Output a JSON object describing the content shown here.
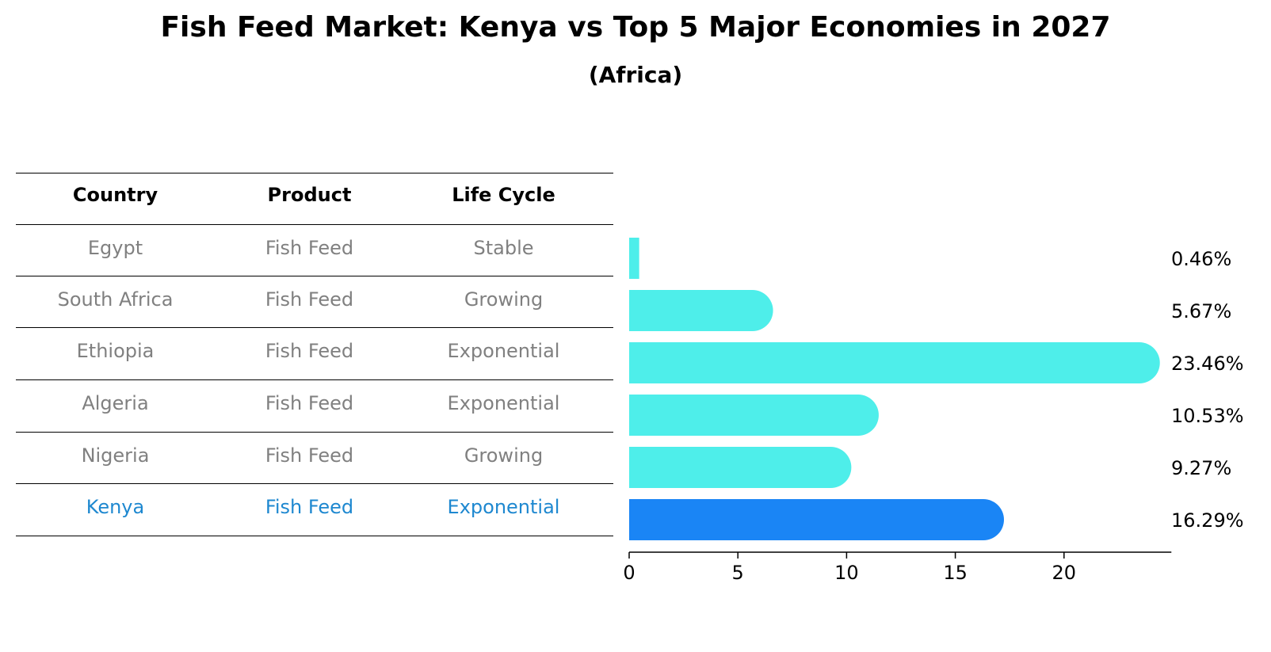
{
  "title": "Fish Feed Market: Kenya vs Top 5 Major Economies in 2027",
  "subtitle": "(Africa)",
  "table": {
    "headers": [
      "Country",
      "Product",
      "Life Cycle"
    ],
    "rows": [
      {
        "country": "Egypt",
        "product": "Fish Feed",
        "life_cycle": "Stable",
        "highlight": false
      },
      {
        "country": "South Africa",
        "product": "Fish Feed",
        "life_cycle": "Growing",
        "highlight": false
      },
      {
        "country": "Ethiopia",
        "product": "Fish Feed",
        "life_cycle": "Exponential",
        "highlight": false
      },
      {
        "country": "Algeria",
        "product": "Fish Feed",
        "life_cycle": "Exponential",
        "highlight": false
      },
      {
        "country": "Nigeria",
        "product": "Fish Feed",
        "life_cycle": "Growing",
        "highlight": false
      },
      {
        "country": "Kenya",
        "product": "Fish Feed",
        "life_cycle": "Exponential",
        "highlight": true
      }
    ]
  },
  "chart_data": {
    "type": "bar",
    "orientation": "horizontal",
    "categories": [
      "Egypt",
      "South Africa",
      "Ethiopia",
      "Algeria",
      "Nigeria",
      "Kenya"
    ],
    "values": [
      0.46,
      5.67,
      23.46,
      10.53,
      9.27,
      16.29
    ],
    "value_labels": [
      "0.46%",
      "5.67%",
      "23.46%",
      "10.53%",
      "9.27%",
      "16.29%"
    ],
    "xticks": [
      "0",
      "5",
      "10",
      "15",
      "20"
    ],
    "xlim": [
      0,
      24.5
    ],
    "grid": false,
    "colors": {
      "default": "#4eeeea",
      "highlight": "#1a85f5"
    },
    "highlight_category": "Kenya"
  },
  "colors": {
    "muted_text": "#808080",
    "highlight_text": "#1e88d0"
  }
}
